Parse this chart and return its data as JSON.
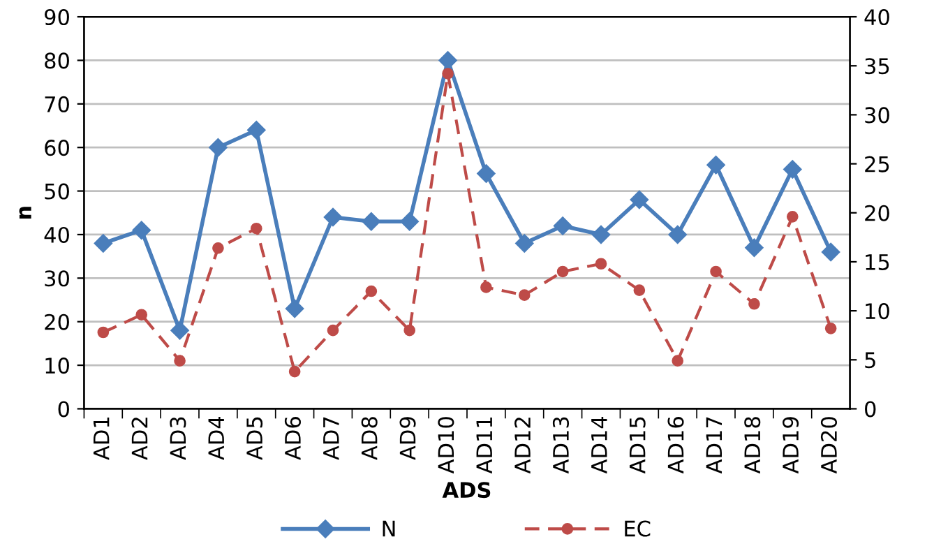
{
  "chart_data": {
    "type": "line",
    "xlabel": "ADS",
    "ylabel": "n",
    "categories": [
      "AD1",
      "AD2",
      "AD3",
      "AD4",
      "AD5",
      "AD6",
      "AD7",
      "AD8",
      "AD9",
      "AD10",
      "AD11",
      "AD12",
      "AD13",
      "AD14",
      "AD15",
      "AD16",
      "AD17",
      "AD18",
      "AD19",
      "AD20"
    ],
    "series": [
      {
        "name": "N",
        "color": "#4a7ebb",
        "marker": "diamond",
        "line_style": "solid",
        "values": [
          38,
          41,
          18,
          60,
          64,
          23,
          44,
          43,
          43,
          80,
          54,
          38,
          42,
          40,
          48,
          40,
          56,
          37,
          55,
          36
        ]
      },
      {
        "name": "EC",
        "color": "#be4b48",
        "marker": "circle",
        "line_style": "dashed",
        "axis": "y2",
        "values": [
          7.8,
          9.6,
          4.9,
          16.4,
          18.4,
          3.8,
          8,
          12,
          8,
          34.2,
          12.4,
          11.6,
          14,
          14.8,
          12.1,
          4.9,
          14,
          10.7,
          19.6,
          8.2
        ]
      }
    ],
    "ylim": [
      0,
      90
    ],
    "yticks": [
      0,
      10,
      20,
      30,
      40,
      50,
      60,
      70,
      80,
      90
    ],
    "y2lim": [
      0,
      40
    ],
    "y2ticks": [
      0,
      5,
      10,
      15,
      20,
      25,
      30,
      35,
      40
    ],
    "grid": "y",
    "legend": "bottom"
  }
}
